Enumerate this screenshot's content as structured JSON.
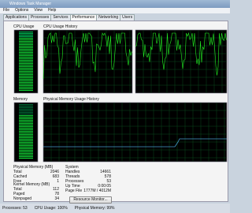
{
  "window": {
    "title": "Windows Task Manager"
  },
  "menu": [
    "File",
    "Options",
    "View",
    "Help"
  ],
  "tabs": [
    "Applications",
    "Processes",
    "Services",
    "Performance",
    "Networking",
    "Users"
  ],
  "panels": {
    "cpu_usage": "CPU Usage",
    "cpu_history": "CPU Usage History",
    "memory": "Memory",
    "memory_history": "Physical Memory Usage History"
  },
  "physical_memory": {
    "heading": "Physical Memory (MB)",
    "rows": [
      [
        "Total",
        2046
      ],
      [
        "Cached",
        683
      ],
      [
        "Free",
        1
      ]
    ]
  },
  "kernel_memory": {
    "heading": "Kernel Memory (MB)",
    "rows": [
      [
        "Total",
        112
      ],
      [
        "Paged",
        78
      ],
      [
        "Nonpaged",
        34
      ]
    ]
  },
  "system": {
    "heading": "System",
    "rows": [
      [
        "Handles",
        14661
      ],
      [
        "Threads",
        578
      ],
      [
        "Processes",
        53
      ],
      [
        "Up Time",
        "0:00:05"
      ],
      [
        "Page File",
        "1777M / 4012M"
      ]
    ]
  },
  "button": "Resource Monitor...",
  "status_bar": [
    "Processes: 53",
    "CPU Usage: 100%",
    "Physical Memory: 99%"
  ]
}
